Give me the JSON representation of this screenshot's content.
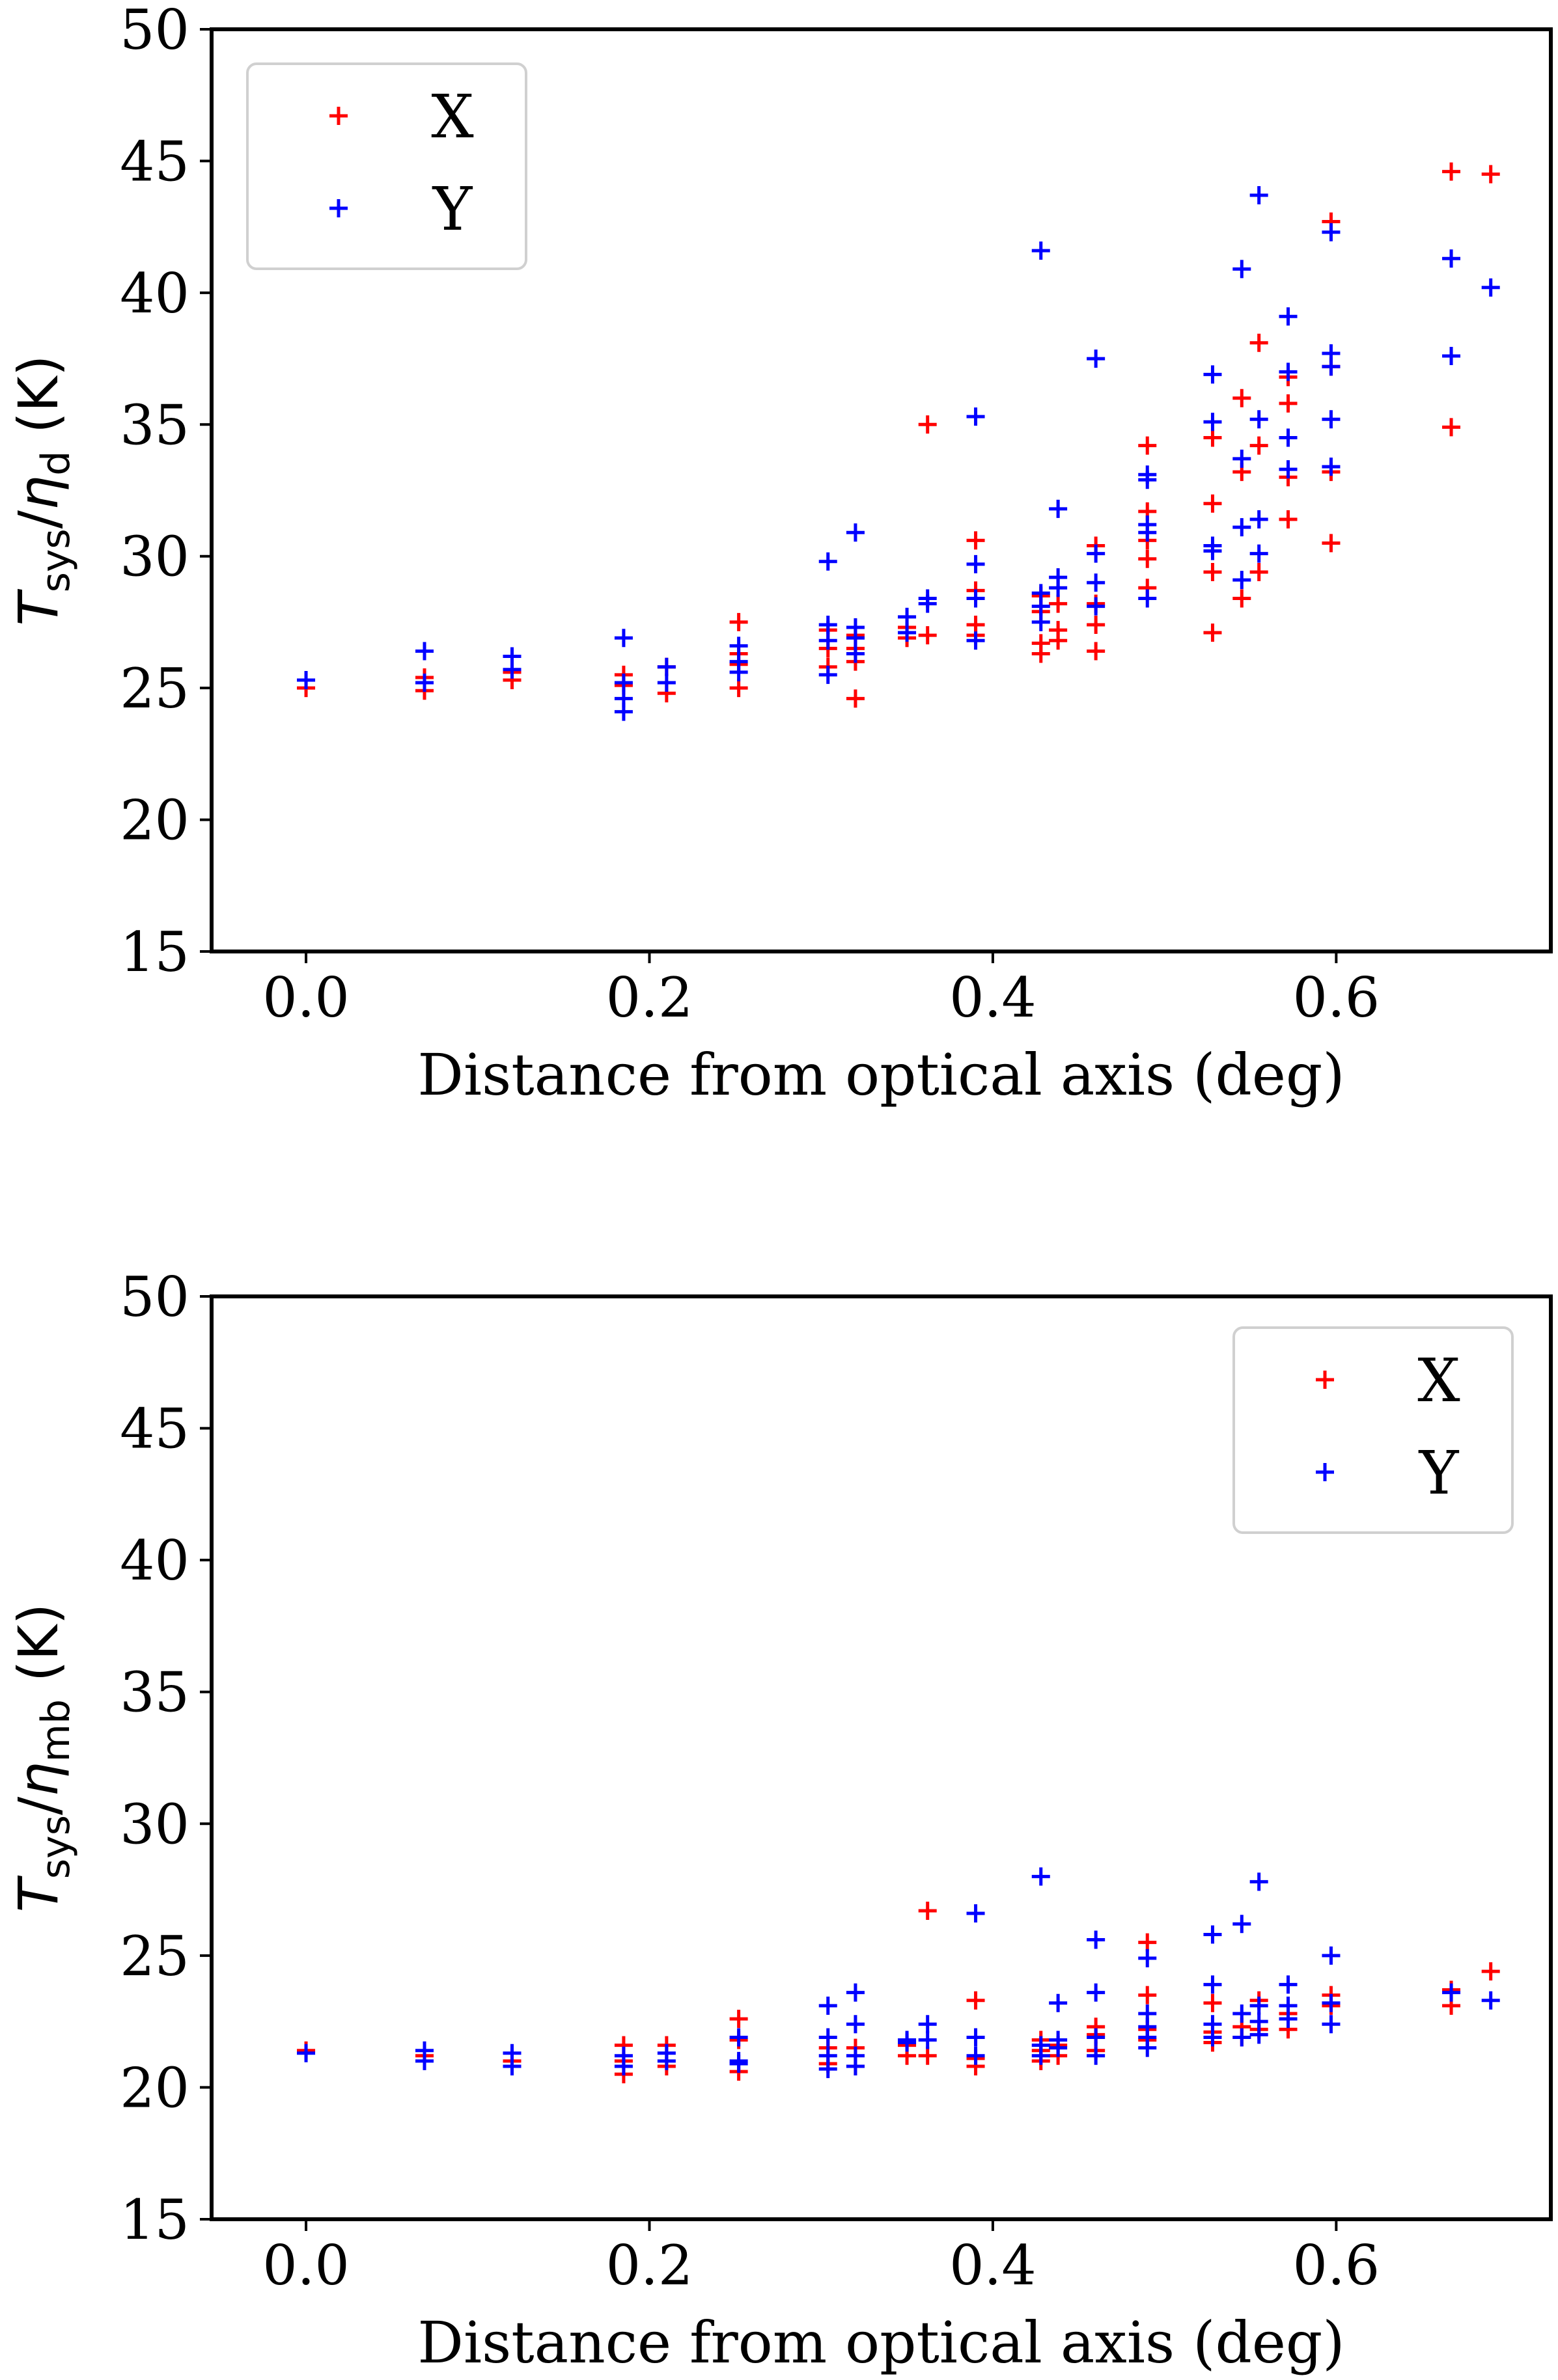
{
  "chart_data": [
    {
      "type": "scatter",
      "title": "",
      "xlabel": "Distance from optical axis (deg)",
      "ylabel": {
        "main": "T",
        "sub1": "sys",
        "slash": "/",
        "eta": "η",
        "sub2": "d",
        "unit": " (K)"
      },
      "xlim": [
        -0.055,
        0.725
      ],
      "ylim": [
        15,
        50
      ],
      "xticks": [
        0.0,
        0.2,
        0.4,
        0.6
      ],
      "xtick_labels": [
        "0.0",
        "0.2",
        "0.4",
        "0.6"
      ],
      "yticks": [
        15,
        20,
        25,
        30,
        35,
        40,
        45,
        50
      ],
      "ytick_labels": [
        "15",
        "20",
        "25",
        "30",
        "35",
        "40",
        "45",
        "50"
      ],
      "legend_position": "upper-left",
      "grid": false,
      "series": [
        {
          "name": "X",
          "color": "#ff0000",
          "points": [
            [
              0.0,
              25.0
            ],
            [
              0.069,
              24.9
            ],
            [
              0.069,
              25.4
            ],
            [
              0.12,
              25.3
            ],
            [
              0.12,
              25.6
            ],
            [
              0.185,
              25.1
            ],
            [
              0.185,
              25.5
            ],
            [
              0.21,
              24.8
            ],
            [
              0.21,
              25.8
            ],
            [
              0.252,
              25.0
            ],
            [
              0.252,
              25.9
            ],
            [
              0.252,
              26.3
            ],
            [
              0.252,
              27.5
            ],
            [
              0.304,
              25.8
            ],
            [
              0.304,
              26.5
            ],
            [
              0.304,
              27.2
            ],
            [
              0.32,
              24.6
            ],
            [
              0.32,
              26.0
            ],
            [
              0.32,
              26.5
            ],
            [
              0.32,
              27.0
            ],
            [
              0.35,
              26.9
            ],
            [
              0.35,
              27.3
            ],
            [
              0.362,
              27.0
            ],
            [
              0.362,
              35.0
            ],
            [
              0.39,
              27.0
            ],
            [
              0.39,
              27.4
            ],
            [
              0.39,
              28.7
            ],
            [
              0.39,
              30.6
            ],
            [
              0.428,
              26.3
            ],
            [
              0.428,
              26.7
            ],
            [
              0.428,
              27.9
            ],
            [
              0.428,
              28.5
            ],
            [
              0.438,
              26.8
            ],
            [
              0.438,
              27.2
            ],
            [
              0.438,
              28.2
            ],
            [
              0.46,
              26.4
            ],
            [
              0.46,
              27.4
            ],
            [
              0.46,
              28.2
            ],
            [
              0.46,
              30.4
            ],
            [
              0.49,
              28.8
            ],
            [
              0.49,
              29.9
            ],
            [
              0.49,
              30.6
            ],
            [
              0.49,
              31.7
            ],
            [
              0.49,
              34.2
            ],
            [
              0.528,
              27.1
            ],
            [
              0.528,
              29.4
            ],
            [
              0.528,
              32.0
            ],
            [
              0.528,
              34.5
            ],
            [
              0.545,
              28.4
            ],
            [
              0.545,
              33.2
            ],
            [
              0.545,
              36.0
            ],
            [
              0.555,
              29.4
            ],
            [
              0.555,
              34.2
            ],
            [
              0.555,
              38.1
            ],
            [
              0.572,
              31.4
            ],
            [
              0.572,
              33.0
            ],
            [
              0.572,
              35.8
            ],
            [
              0.572,
              36.8
            ],
            [
              0.597,
              30.5
            ],
            [
              0.597,
              33.2
            ],
            [
              0.597,
              37.2
            ],
            [
              0.597,
              42.7
            ],
            [
              0.667,
              34.9
            ],
            [
              0.667,
              44.6
            ],
            [
              0.69,
              44.5
            ]
          ]
        },
        {
          "name": "Y",
          "color": "#0000ff",
          "points": [
            [
              0.0,
              25.3
            ],
            [
              0.069,
              25.2
            ],
            [
              0.069,
              26.4
            ],
            [
              0.12,
              25.7
            ],
            [
              0.12,
              26.2
            ],
            [
              0.185,
              24.1
            ],
            [
              0.185,
              24.6
            ],
            [
              0.185,
              25.2
            ],
            [
              0.185,
              26.9
            ],
            [
              0.21,
              25.2
            ],
            [
              0.21,
              25.8
            ],
            [
              0.252,
              25.6
            ],
            [
              0.252,
              26.0
            ],
            [
              0.252,
              26.6
            ],
            [
              0.304,
              25.5
            ],
            [
              0.304,
              26.8
            ],
            [
              0.304,
              27.4
            ],
            [
              0.304,
              29.8
            ],
            [
              0.32,
              26.3
            ],
            [
              0.32,
              26.9
            ],
            [
              0.32,
              27.3
            ],
            [
              0.32,
              30.9
            ],
            [
              0.35,
              27.1
            ],
            [
              0.35,
              27.7
            ],
            [
              0.362,
              28.2
            ],
            [
              0.362,
              28.4
            ],
            [
              0.39,
              26.8
            ],
            [
              0.39,
              28.4
            ],
            [
              0.39,
              29.7
            ],
            [
              0.39,
              35.3
            ],
            [
              0.428,
              27.5
            ],
            [
              0.428,
              28.1
            ],
            [
              0.428,
              28.6
            ],
            [
              0.428,
              41.6
            ],
            [
              0.438,
              28.8
            ],
            [
              0.438,
              29.2
            ],
            [
              0.438,
              31.8
            ],
            [
              0.46,
              28.1
            ],
            [
              0.46,
              29.0
            ],
            [
              0.46,
              30.1
            ],
            [
              0.46,
              37.5
            ],
            [
              0.49,
              28.4
            ],
            [
              0.49,
              30.9
            ],
            [
              0.49,
              31.2
            ],
            [
              0.49,
              32.9
            ],
            [
              0.49,
              33.1
            ],
            [
              0.528,
              30.2
            ],
            [
              0.528,
              30.4
            ],
            [
              0.528,
              35.1
            ],
            [
              0.528,
              36.9
            ],
            [
              0.545,
              29.1
            ],
            [
              0.545,
              31.1
            ],
            [
              0.545,
              33.7
            ],
            [
              0.545,
              40.9
            ],
            [
              0.555,
              30.1
            ],
            [
              0.555,
              31.4
            ],
            [
              0.555,
              35.2
            ],
            [
              0.555,
              43.7
            ],
            [
              0.572,
              33.3
            ],
            [
              0.572,
              34.5
            ],
            [
              0.572,
              37.0
            ],
            [
              0.572,
              39.1
            ],
            [
              0.597,
              33.4
            ],
            [
              0.597,
              35.2
            ],
            [
              0.597,
              37.2
            ],
            [
              0.597,
              37.7
            ],
            [
              0.597,
              42.3
            ],
            [
              0.667,
              37.6
            ],
            [
              0.667,
              41.3
            ],
            [
              0.69,
              40.2
            ]
          ]
        }
      ]
    },
    {
      "type": "scatter",
      "title": "",
      "xlabel": "Distance from optical axis (deg)",
      "ylabel": {
        "main": "T",
        "sub1": "sys",
        "slash": "/",
        "eta": "η",
        "sub2": "mb",
        "unit": " (K)"
      },
      "xlim": [
        -0.055,
        0.725
      ],
      "ylim": [
        15,
        50
      ],
      "xticks": [
        0.0,
        0.2,
        0.4,
        0.6
      ],
      "xtick_labels": [
        "0.0",
        "0.2",
        "0.4",
        "0.6"
      ],
      "yticks": [
        15,
        20,
        25,
        30,
        35,
        40,
        45,
        50
      ],
      "ytick_labels": [
        "15",
        "20",
        "25",
        "30",
        "35",
        "40",
        "45",
        "50"
      ],
      "legend_position": "upper-right",
      "grid": false,
      "series": [
        {
          "name": "X",
          "color": "#ff0000",
          "points": [
            [
              0.0,
              21.4
            ],
            [
              0.069,
              21.2
            ],
            [
              0.12,
              21.0
            ],
            [
              0.185,
              20.5
            ],
            [
              0.185,
              21.0
            ],
            [
              0.185,
              21.6
            ],
            [
              0.21,
              20.8
            ],
            [
              0.21,
              21.6
            ],
            [
              0.252,
              20.6
            ],
            [
              0.252,
              21.8
            ],
            [
              0.252,
              22.6
            ],
            [
              0.304,
              20.9
            ],
            [
              0.304,
              21.5
            ],
            [
              0.32,
              20.8
            ],
            [
              0.32,
              21.5
            ],
            [
              0.35,
              21.2
            ],
            [
              0.35,
              21.6
            ],
            [
              0.362,
              21.2
            ],
            [
              0.362,
              26.7
            ],
            [
              0.39,
              20.8
            ],
            [
              0.39,
              21.1
            ],
            [
              0.39,
              23.3
            ],
            [
              0.428,
              21.0
            ],
            [
              0.428,
              21.4
            ],
            [
              0.428,
              21.8
            ],
            [
              0.438,
              21.2
            ],
            [
              0.438,
              21.6
            ],
            [
              0.46,
              21.4
            ],
            [
              0.46,
              22.0
            ],
            [
              0.46,
              22.3
            ],
            [
              0.49,
              21.8
            ],
            [
              0.49,
              22.2
            ],
            [
              0.49,
              23.5
            ],
            [
              0.49,
              25.5
            ],
            [
              0.528,
              21.7
            ],
            [
              0.528,
              22.1
            ],
            [
              0.528,
              23.2
            ],
            [
              0.545,
              21.9
            ],
            [
              0.545,
              22.3
            ],
            [
              0.555,
              22.2
            ],
            [
              0.555,
              23.3
            ],
            [
              0.572,
              22.2
            ],
            [
              0.572,
              22.8
            ],
            [
              0.597,
              23.1
            ],
            [
              0.597,
              23.5
            ],
            [
              0.667,
              23.1
            ],
            [
              0.667,
              23.7
            ],
            [
              0.69,
              24.4
            ]
          ]
        },
        {
          "name": "Y",
          "color": "#0000ff",
          "points": [
            [
              0.0,
              21.3
            ],
            [
              0.069,
              21.0
            ],
            [
              0.069,
              21.4
            ],
            [
              0.12,
              20.8
            ],
            [
              0.12,
              21.3
            ],
            [
              0.185,
              20.8
            ],
            [
              0.185,
              21.2
            ],
            [
              0.21,
              21.0
            ],
            [
              0.21,
              21.3
            ],
            [
              0.252,
              20.9
            ],
            [
              0.252,
              21.0
            ],
            [
              0.252,
              21.9
            ],
            [
              0.304,
              20.7
            ],
            [
              0.304,
              21.2
            ],
            [
              0.304,
              21.9
            ],
            [
              0.304,
              23.1
            ],
            [
              0.32,
              20.8
            ],
            [
              0.32,
              21.2
            ],
            [
              0.32,
              22.4
            ],
            [
              0.32,
              23.6
            ],
            [
              0.35,
              21.7
            ],
            [
              0.35,
              21.8
            ],
            [
              0.362,
              21.8
            ],
            [
              0.362,
              22.4
            ],
            [
              0.39,
              21.2
            ],
            [
              0.39,
              21.9
            ],
            [
              0.39,
              26.6
            ],
            [
              0.428,
              21.2
            ],
            [
              0.428,
              21.6
            ],
            [
              0.428,
              28.0
            ],
            [
              0.438,
              21.5
            ],
            [
              0.438,
              21.8
            ],
            [
              0.438,
              23.2
            ],
            [
              0.46,
              21.2
            ],
            [
              0.46,
              21.9
            ],
            [
              0.46,
              23.6
            ],
            [
              0.46,
              25.6
            ],
            [
              0.49,
              21.5
            ],
            [
              0.49,
              21.9
            ],
            [
              0.49,
              22.3
            ],
            [
              0.49,
              22.8
            ],
            [
              0.49,
              24.9
            ],
            [
              0.528,
              21.9
            ],
            [
              0.528,
              22.4
            ],
            [
              0.528,
              23.9
            ],
            [
              0.528,
              25.8
            ],
            [
              0.545,
              21.9
            ],
            [
              0.545,
              22.8
            ],
            [
              0.545,
              26.2
            ],
            [
              0.555,
              22.0
            ],
            [
              0.555,
              22.5
            ],
            [
              0.555,
              23.1
            ],
            [
              0.555,
              27.8
            ],
            [
              0.572,
              22.6
            ],
            [
              0.572,
              23.1
            ],
            [
              0.572,
              23.9
            ],
            [
              0.597,
              22.4
            ],
            [
              0.597,
              23.2
            ],
            [
              0.597,
              25.0
            ],
            [
              0.667,
              23.6
            ],
            [
              0.69,
              23.3
            ]
          ]
        }
      ]
    }
  ]
}
